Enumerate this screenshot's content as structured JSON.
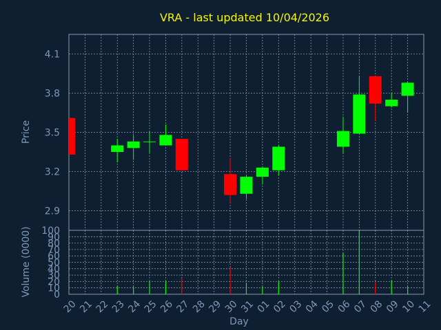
{
  "chart_data": {
    "type": "candlestick",
    "title": "VRA - last updated 10/04/2026",
    "xlabel": "Day",
    "price_panel": {
      "ylabel": "Price",
      "yticks": [
        "2.9",
        "3.2",
        "3.5",
        "3.8",
        "4.1"
      ],
      "ylim": [
        2.75,
        4.25
      ]
    },
    "volume_panel": {
      "ylabel": "Volume (0000)",
      "yticks": [
        "0",
        "10",
        "20",
        "30",
        "40",
        "50",
        "60",
        "70",
        "80",
        "90",
        "100"
      ],
      "ylim": [
        0,
        100
      ]
    },
    "x_labels": [
      "20",
      "21",
      "22",
      "23",
      "24",
      "25",
      "26",
      "27",
      "28",
      "29",
      "30",
      "31",
      "01",
      "02",
      "03",
      "04",
      "05",
      "06",
      "07",
      "08",
      "09",
      "10",
      "11"
    ],
    "grid": true,
    "up_color": "#00ff00",
    "down_color": "#ff0000",
    "candles": [
      {
        "day": "20",
        "open": 3.61,
        "high": 3.61,
        "low": 3.33,
        "close": 3.33,
        "volume": 0
      },
      {
        "day": "23",
        "open": 3.35,
        "high": 3.45,
        "low": 3.27,
        "close": 3.4,
        "volume": 13
      },
      {
        "day": "24",
        "open": 3.38,
        "high": 3.48,
        "low": 3.29,
        "close": 3.43,
        "volume": 12
      },
      {
        "day": "25",
        "open": 3.43,
        "high": 3.51,
        "low": 3.34,
        "close": 3.43,
        "volume": 20
      },
      {
        "day": "26",
        "open": 3.4,
        "high": 3.56,
        "low": 3.4,
        "close": 3.48,
        "volume": 20
      },
      {
        "day": "27",
        "open": 3.45,
        "high": 3.45,
        "low": 3.2,
        "close": 3.21,
        "volume": 25
      },
      {
        "day": "30",
        "open": 3.18,
        "high": 3.3,
        "low": 2.96,
        "close": 3.02,
        "volume": 42
      },
      {
        "day": "31",
        "open": 3.03,
        "high": 3.17,
        "low": 2.99,
        "close": 3.16,
        "volume": 18
      },
      {
        "day": "01",
        "open": 3.16,
        "high": 3.24,
        "low": 3.1,
        "close": 3.23,
        "volume": 12
      },
      {
        "day": "02",
        "open": 3.21,
        "high": 3.4,
        "low": 3.17,
        "close": 3.39,
        "volume": 20
      },
      {
        "day": "06",
        "open": 3.39,
        "high": 3.62,
        "low": 3.34,
        "close": 3.51,
        "volume": 65
      },
      {
        "day": "07",
        "open": 3.49,
        "high": 3.93,
        "low": 3.49,
        "close": 3.79,
        "volume": 100
      },
      {
        "day": "08",
        "open": 3.93,
        "high": 3.93,
        "low": 3.59,
        "close": 3.72,
        "volume": 19
      },
      {
        "day": "09",
        "open": 3.7,
        "high": 3.8,
        "low": 3.69,
        "close": 3.75,
        "volume": 22
      },
      {
        "day": "10",
        "open": 3.78,
        "high": 3.89,
        "low": 3.65,
        "close": 3.88,
        "volume": 12
      }
    ]
  }
}
